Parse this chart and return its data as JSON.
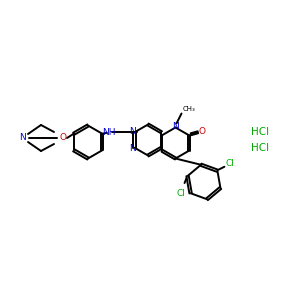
{
  "bg_color": "#ffffff",
  "figsize": [
    3.0,
    3.0
  ],
  "dpi": 100,
  "bond_color": "#000000",
  "n_color": "#0000cc",
  "o_color": "#cc0000",
  "cl_color": "#00aa00",
  "bond_width": 1.4,
  "dbo": 0.013,
  "fs": 6.5,
  "xlim": [
    0,
    3.0
  ],
  "ylim": [
    0,
    3.0
  ]
}
